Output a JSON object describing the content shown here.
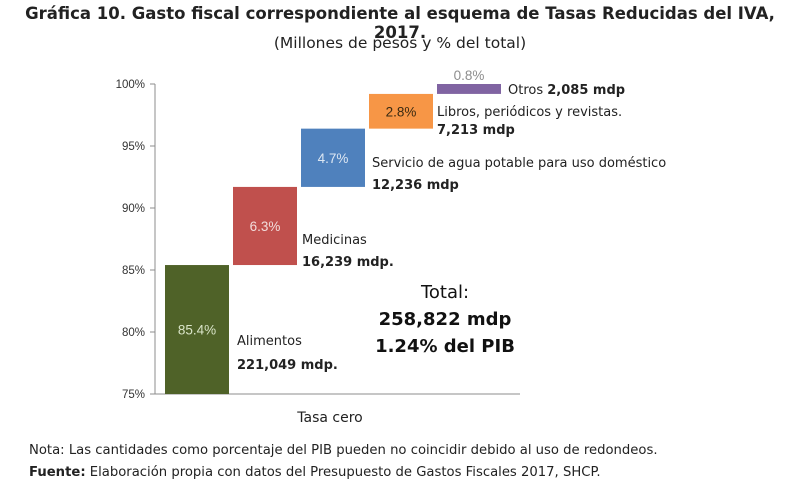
{
  "header": {
    "title": "Gráfica 10. Gasto fiscal correspondiente al esquema de Tasas Reducidas del IVA, 2017.",
    "subtitle": "(Millones de pesos y % del total)"
  },
  "footer": {
    "note": "Nota: Las cantidades como porcentaje del PIB pueden no coincidir debido al uso de redondeos.",
    "source_label": "Fuente:",
    "source_text": " Elaboración propia con datos del Presupuesto de Gastos Fiscales 2017, SHCP."
  },
  "chart_data": {
    "type": "bar",
    "subtype": "stacked-waterfall",
    "xlabel": "Tasa cero",
    "ylabel": "",
    "ylim": [
      75,
      100
    ],
    "yticks": [
      75,
      80,
      85,
      90,
      95,
      100
    ],
    "ytick_labels": [
      "75%",
      "80%",
      "85%",
      "90%",
      "95%",
      "100%"
    ],
    "grid": false,
    "series": [
      {
        "name": "Alimentos",
        "value_pct": 85.4,
        "pct_label": "85.4%",
        "amount_label": "221,049 mdp.",
        "color": "#4f6228",
        "label_color": "#d9e4c8"
      },
      {
        "name": "Medicinas",
        "value_pct": 6.3,
        "pct_label": "6.3%",
        "amount_label": "16,239 mdp.",
        "color": "#c0504d",
        "label_color": "#f2dcdb"
      },
      {
        "name": "Servicio de agua potable para uso doméstico",
        "value_pct": 4.7,
        "pct_label": "4.7%",
        "amount_label": "12,236 mdp",
        "color": "#4f81bd",
        "label_color": "#dce6f2"
      },
      {
        "name": "Libros, periódicos y revistas.",
        "value_pct": 2.8,
        "pct_label": "2.8%",
        "amount_label": "7,213 mdp",
        "color": "#f79646",
        "label_color": "#3a2a12"
      },
      {
        "name": "Otros",
        "value_pct": 0.8,
        "pct_label": "0.8%",
        "amount_label": "2,085 mdp",
        "color": "#8064a2",
        "label_color": "#8d8d8d"
      }
    ],
    "total": {
      "label": "Total:",
      "amount": "258,822 mdp",
      "pib": "1.24% del PIB"
    }
  }
}
